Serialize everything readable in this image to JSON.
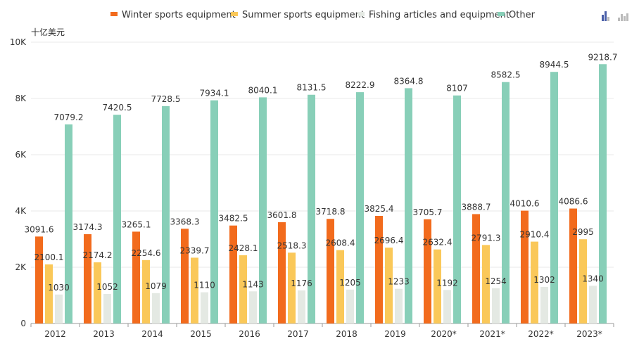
{
  "unit_label": "十亿美元",
  "toolbar": {
    "icons": [
      "bar-chart-icon",
      "bar-chart-alt-icon"
    ],
    "colors": {
      "active": "#4a5fa8",
      "inactive": "#bbbbbb"
    }
  },
  "colors": [
    "#f26b1d",
    "#fac859",
    "#e4e9e3",
    "#88cfb8"
  ],
  "chart_data": {
    "type": "bar",
    "categories": [
      "2012",
      "2013",
      "2014",
      "2015",
      "2016",
      "2017",
      "2018",
      "2019",
      "2020*",
      "2021*",
      "2022*",
      "2023*"
    ],
    "series": [
      {
        "name": "Winter sports equipment",
        "values": [
          3091.6,
          3174.3,
          3265.1,
          3368.3,
          3482.5,
          3601.8,
          3718.8,
          3825.4,
          3705.7,
          3888.7,
          4010.6,
          4086.6
        ]
      },
      {
        "name": "Summer sports equipment",
        "values": [
          2100.1,
          2174.2,
          2254.6,
          2339.7,
          2428.1,
          2518.3,
          2608.4,
          2696.4,
          2632.4,
          2791.3,
          2910.4,
          2995
        ]
      },
      {
        "name": "Fishing articles and equipment",
        "values": [
          1030,
          1052,
          1079,
          1110,
          1143,
          1176,
          1205,
          1233,
          1192,
          1254,
          1302,
          1340
        ]
      },
      {
        "name": "Other",
        "values": [
          7079.2,
          7420.5,
          7728.5,
          7934.1,
          8040.1,
          8131.5,
          8222.9,
          8364.8,
          8107,
          8582.5,
          8944.5,
          9218.7
        ]
      }
    ],
    "data_labels": [
      [
        "3091.6",
        "3174.3",
        "3265.1",
        "3368.3",
        "3482.5",
        "3601.8",
        "3718.8",
        "3825.4",
        "3705.7",
        "3888.7",
        "4010.6",
        "4086.6"
      ],
      [
        "2100.1",
        "2174.2",
        "2254.6",
        "2339.7",
        "2428.1",
        "2518.3",
        "2608.4",
        "2696.4",
        "2632.4",
        "2791.3",
        "2910.4",
        "2995"
      ],
      [
        "1030",
        "1052",
        "1079",
        "1110",
        "1143",
        "1176",
        "1205",
        "1233",
        "1192",
        "1254",
        "1302",
        "1340"
      ],
      [
        "7079.2",
        "7420.5",
        "7728.5",
        "7934.1",
        "8040.1",
        "8131.5",
        "8222.9",
        "8364.8",
        "8107",
        "8582.5",
        "8944.5",
        "9218.7"
      ]
    ],
    "ylim": [
      0,
      10000
    ],
    "yticks": [
      0,
      2000,
      4000,
      6000,
      8000,
      10000
    ],
    "ytick_labels": [
      "0",
      "2K",
      "4K",
      "6K",
      "8K",
      "10K"
    ],
    "grid": true,
    "legend_position": "top"
  }
}
